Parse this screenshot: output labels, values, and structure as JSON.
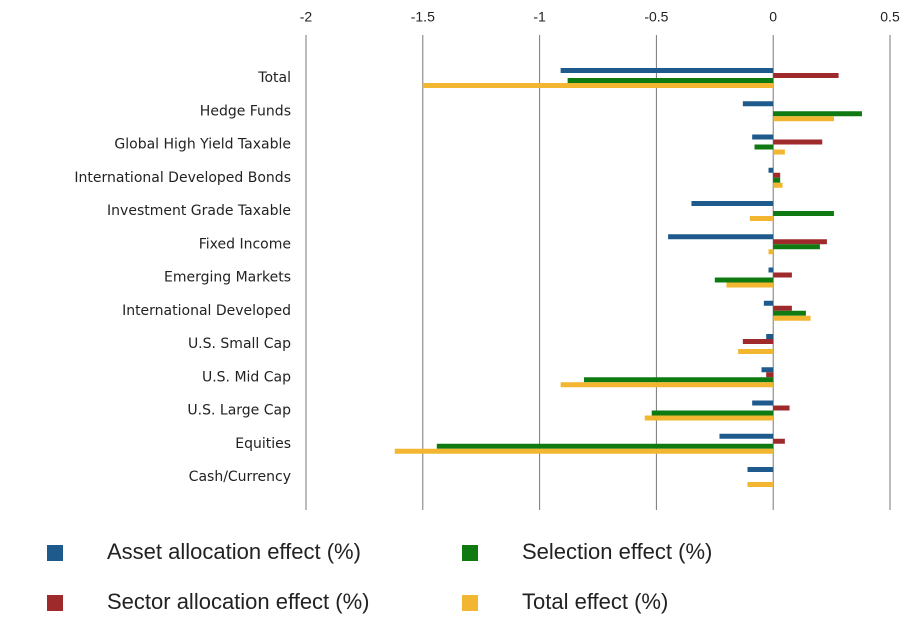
{
  "chart_data": {
    "type": "hbar",
    "categories": [
      "Total",
      "Hedge Funds",
      "Global High Yield Taxable",
      "International Developed Bonds",
      "Investment Grade Taxable",
      "Fixed Income",
      "Emerging Markets",
      "International Developed",
      "U.S. Small Cap",
      "U.S. Mid Cap",
      "U.S. Large Cap",
      "Equities",
      "Cash/Currency"
    ],
    "series": [
      {
        "name": "Asset allocation effect (%)",
        "color": "#1f5a8c",
        "values": [
          -0.91,
          -0.13,
          -0.09,
          -0.02,
          -0.35,
          -0.45,
          -0.02,
          -0.04,
          -0.03,
          -0.05,
          -0.09,
          -0.23,
          -0.11
        ]
      },
      {
        "name": "Sector allocation effect (%)",
        "color": "#9e2a2b",
        "values": [
          0.28,
          0,
          0.21,
          0.03,
          0,
          0.23,
          0.08,
          0.08,
          -0.13,
          -0.03,
          0.07,
          0.05,
          0
        ]
      },
      {
        "name": "Selection effect (%)",
        "color": "#0f7a12",
        "values": [
          -0.88,
          0.38,
          -0.08,
          0.03,
          0.26,
          0.2,
          -0.25,
          0.14,
          0,
          -0.81,
          -0.52,
          -1.44,
          0
        ]
      },
      {
        "name": "Total effect (%)",
        "color": "#f2b630",
        "values": [
          -1.5,
          0.26,
          0.05,
          0.04,
          -0.1,
          -0.02,
          -0.2,
          0.16,
          -0.15,
          -0.91,
          -0.55,
          -1.62,
          -0.11
        ]
      }
    ],
    "xlim": [
      -2,
      0.5
    ],
    "xticks": [
      -2,
      -1.5,
      -1,
      -0.5,
      0,
      0.5
    ],
    "grid": true
  }
}
